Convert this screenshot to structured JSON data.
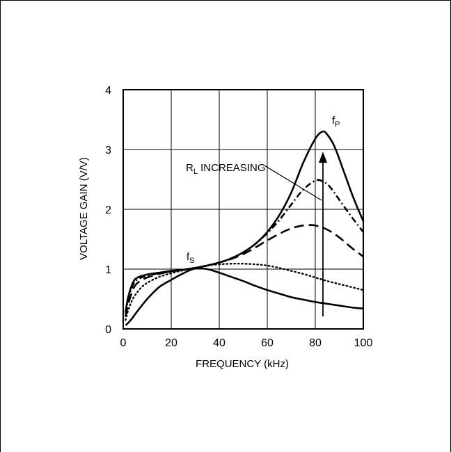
{
  "chart_data": {
    "type": "line",
    "title": "",
    "xlabel": "FREQUENCY (kHz)",
    "ylabel": "VOLTAGE GAIN (V/V)",
    "xlim": [
      0,
      100
    ],
    "ylim": [
      0,
      4
    ],
    "x_ticks": [
      "0",
      "20",
      "40",
      "60",
      "80",
      "100"
    ],
    "y_ticks": [
      "0",
      "1",
      "2",
      "3",
      "4"
    ],
    "grid": true,
    "legend": "none",
    "annotations": {
      "rl_main": "R",
      "rl_sub": "L",
      "rl_rest": " INCREASING",
      "fs_main": "f",
      "fs_sub": "S",
      "fp_main": "f",
      "fp_sub": "P"
    },
    "series": [
      {
        "style": "solid",
        "x": [
          1,
          3,
          6,
          10,
          15,
          20,
          25,
          30,
          35,
          40,
          45,
          50,
          55,
          60,
          65,
          70,
          75,
          80,
          85,
          90,
          95,
          100
        ],
        "y": [
          0.06,
          0.14,
          0.3,
          0.5,
          0.7,
          0.82,
          0.93,
          1.01,
          1.0,
          0.94,
          0.87,
          0.8,
          0.72,
          0.65,
          0.59,
          0.53,
          0.49,
          0.45,
          0.42,
          0.39,
          0.36,
          0.34
        ]
      },
      {
        "style": "dotted",
        "x": [
          1,
          2,
          4,
          7,
          10,
          15,
          20,
          25,
          30,
          35,
          40,
          45,
          50,
          55,
          60,
          65,
          70,
          75,
          80,
          85,
          90,
          95,
          100
        ],
        "y": [
          0.15,
          0.3,
          0.5,
          0.67,
          0.77,
          0.87,
          0.93,
          0.98,
          1.02,
          1.06,
          1.08,
          1.09,
          1.09,
          1.08,
          1.06,
          1.02,
          0.97,
          0.92,
          0.86,
          0.8,
          0.75,
          0.7,
          0.65
        ]
      },
      {
        "style": "long-dash",
        "x": [
          1,
          2,
          4,
          6,
          10,
          15,
          20,
          25,
          30,
          35,
          40,
          45,
          50,
          55,
          60,
          65,
          70,
          75,
          80,
          85,
          90,
          95,
          100
        ],
        "y": [
          0.2,
          0.4,
          0.65,
          0.77,
          0.86,
          0.92,
          0.96,
          0.99,
          1.02,
          1.06,
          1.11,
          1.17,
          1.25,
          1.36,
          1.48,
          1.59,
          1.68,
          1.73,
          1.73,
          1.66,
          1.53,
          1.36,
          1.21
        ]
      },
      {
        "style": "dash-dot",
        "x": [
          1,
          2,
          4,
          6,
          10,
          15,
          20,
          25,
          30,
          35,
          40,
          45,
          50,
          55,
          60,
          65,
          70,
          75,
          80,
          83,
          86,
          90,
          95,
          100
        ],
        "y": [
          0.25,
          0.48,
          0.73,
          0.83,
          0.89,
          0.93,
          0.96,
          0.99,
          1.02,
          1.06,
          1.11,
          1.18,
          1.28,
          1.42,
          1.6,
          1.82,
          2.08,
          2.33,
          2.48,
          2.47,
          2.38,
          2.16,
          1.88,
          1.62
        ]
      },
      {
        "style": "solid",
        "x": [
          1,
          2,
          4,
          6,
          10,
          15,
          20,
          25,
          30,
          35,
          40,
          45,
          50,
          55,
          60,
          65,
          70,
          75,
          80,
          83,
          85,
          88,
          92,
          96,
          100
        ],
        "y": [
          0.28,
          0.52,
          0.77,
          0.86,
          0.91,
          0.94,
          0.97,
          0.99,
          1.02,
          1.06,
          1.11,
          1.18,
          1.28,
          1.42,
          1.62,
          1.9,
          2.28,
          2.78,
          3.18,
          3.3,
          3.25,
          3.05,
          2.62,
          2.18,
          1.8
        ]
      }
    ]
  }
}
